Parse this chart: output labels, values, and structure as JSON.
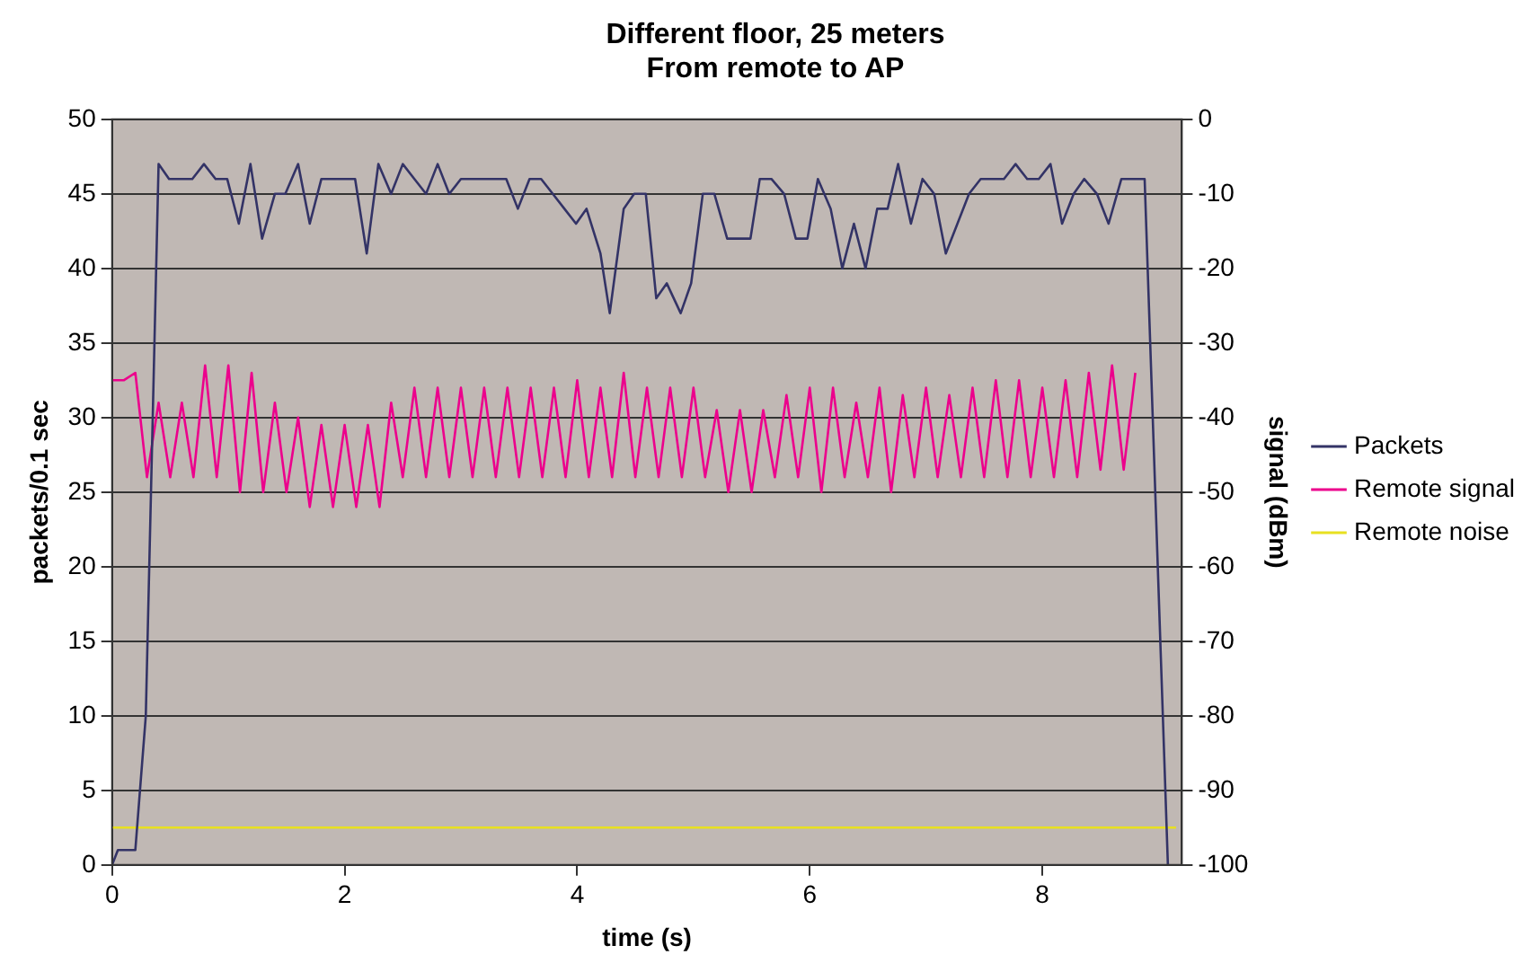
{
  "chart_data": {
    "type": "line",
    "title": "Different floor, 25 meters\nFrom remote to AP",
    "xlabel": "time (s)",
    "ylabel": "packets/0.1 sec",
    "y2label": "signal (dBm)",
    "xlim": [
      0,
      9.2
    ],
    "xticks": [
      0,
      2,
      4,
      6,
      8
    ],
    "ylim": [
      0,
      50
    ],
    "yticks": [
      0,
      5,
      10,
      15,
      20,
      25,
      30,
      35,
      40,
      45,
      50
    ],
    "y2lim": [
      -100,
      0
    ],
    "y2ticks": [
      -100,
      -90,
      -80,
      -70,
      -60,
      -50,
      -40,
      -30,
      -20,
      -10,
      0
    ],
    "grid": "y",
    "legend": "right",
    "marker": "none",
    "line_style": "solid",
    "series": [
      {
        "name": "Packets",
        "color": "#333366",
        "x": [
          0,
          0.05,
          0.2,
          0.29,
          0.4,
          0.49,
          0.69,
          0.79,
          0.89,
          0.99,
          1.09,
          1.19,
          1.29,
          1.4,
          1.49,
          1.6,
          1.7,
          1.8,
          2.09,
          2.19,
          2.29,
          2.4,
          2.5,
          2.6,
          2.7,
          2.8,
          2.9,
          3.0,
          3.39,
          3.49,
          3.59,
          3.69,
          3.79,
          3.89,
          3.99,
          4.08,
          4.2,
          4.28,
          4.4,
          4.49,
          4.59,
          4.68,
          4.77,
          4.89,
          4.98,
          5.08,
          5.18,
          5.29,
          5.49,
          5.57,
          5.67,
          5.78,
          5.88,
          5.98,
          6.07,
          6.18,
          6.28,
          6.38,
          6.48,
          6.58,
          6.67,
          6.76,
          6.87,
          6.97,
          7.07,
          7.17,
          7.27,
          7.37,
          7.47,
          7.67,
          7.77,
          7.87,
          7.97,
          8.07,
          8.17,
          8.27,
          8.36,
          8.47,
          8.57,
          8.68,
          8.88,
          9.08
        ],
        "values": [
          0,
          1,
          1,
          10,
          47,
          46,
          46,
          47,
          46,
          46,
          43,
          47,
          42,
          45,
          45,
          47,
          43,
          46,
          46,
          41,
          47,
          45,
          47,
          46,
          45,
          47,
          45,
          46,
          46,
          44,
          46,
          46,
          45,
          44,
          43,
          44,
          41,
          37,
          44,
          45,
          45,
          38,
          39,
          37,
          39,
          45,
          45,
          42,
          42,
          46,
          46,
          45,
          42,
          42,
          46,
          44,
          40,
          43,
          40,
          44,
          44,
          47,
          43,
          46,
          45,
          41,
          43,
          45,
          46,
          46,
          47,
          46,
          46,
          47,
          43,
          45,
          46,
          45,
          43,
          46,
          46,
          0
        ]
      },
      {
        "name": "Remote signal",
        "color": "#ec008c",
        "axis": "y2",
        "x": [
          0,
          0.1,
          0.2,
          0.3,
          0.4,
          0.5,
          0.6,
          0.7,
          0.8,
          0.9,
          1.0,
          1.1,
          1.2,
          1.3,
          1.4,
          1.5,
          1.6,
          1.7,
          1.8,
          1.9,
          2.0,
          2.1,
          2.2,
          2.3,
          2.4,
          2.5,
          2.6,
          2.7,
          2.8,
          2.9,
          3.0,
          3.1,
          3.2,
          3.3,
          3.4,
          3.5,
          3.6,
          3.7,
          3.8,
          3.9,
          4.0,
          4.1,
          4.2,
          4.3,
          4.4,
          4.5,
          4.6,
          4.7,
          4.8,
          4.9,
          5.0,
          5.1,
          5.2,
          5.3,
          5.4,
          5.5,
          5.6,
          5.7,
          5.8,
          5.9,
          6.0,
          6.1,
          6.2,
          6.3,
          6.4,
          6.5,
          6.6,
          6.7,
          6.8,
          6.9,
          7.0,
          7.1,
          7.2,
          7.3,
          7.4,
          7.5,
          7.6,
          7.7,
          7.8,
          7.9,
          8.0,
          8.1,
          8.2,
          8.3,
          8.4,
          8.5,
          8.6,
          8.7,
          8.8
        ],
        "values": [
          -35,
          -35,
          -34,
          -48,
          -38,
          -48,
          -38,
          -48,
          -33,
          -48,
          -33,
          -50,
          -34,
          -50,
          -38,
          -50,
          -40,
          -52,
          -41,
          -52,
          -41,
          -52,
          -41,
          -52,
          -38,
          -48,
          -36,
          -48,
          -36,
          -48,
          -36,
          -48,
          -36,
          -48,
          -36,
          -48,
          -36,
          -48,
          -36,
          -48,
          -35,
          -48,
          -36,
          -48,
          -34,
          -48,
          -36,
          -48,
          -36,
          -48,
          -36,
          -48,
          -39,
          -50,
          -39,
          -50,
          -39,
          -48,
          -37,
          -48,
          -36,
          -50,
          -36,
          -48,
          -38,
          -48,
          -36,
          -50,
          -37,
          -48,
          -36,
          -48,
          -37,
          -48,
          -36,
          -48,
          -35,
          -48,
          -35,
          -48,
          -36,
          -48,
          -35,
          -48,
          -34,
          -47,
          -33,
          -47,
          -34
        ]
      },
      {
        "name": "Remote noise",
        "color": "#e8e020",
        "axis": "y2",
        "x": [
          0,
          9.15
        ],
        "values": [
          -95,
          -95
        ]
      }
    ]
  }
}
